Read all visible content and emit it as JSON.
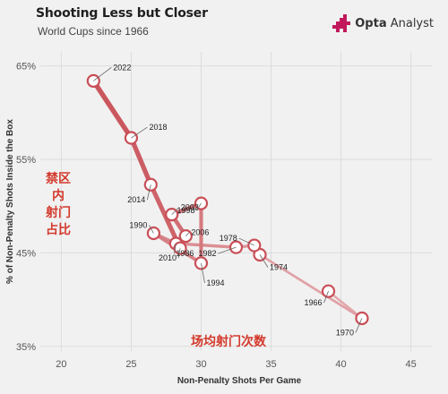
{
  "header": {
    "title": "Shooting Less but Closer",
    "subtitle": "World Cups since 1966",
    "brand_bold": "Opta",
    "brand_rest": " Analyst",
    "brand_icon": "opta-analyst-logo-icon"
  },
  "annotations": {
    "y_cn": "禁区\n内\n射门\n占比",
    "x_cn": "场均射门次数"
  },
  "colors": {
    "background": "#f1f1f1",
    "line_dark": "#c94f57",
    "line_light": "#e2a4a8",
    "marker_fill": "#ffffff",
    "marker_stroke": "#c94f57",
    "annotation": "#d33a2c"
  },
  "chart_data": {
    "type": "scatter",
    "title": "Shooting Less but Closer",
    "subtitle": "World Cups since 1966",
    "xlabel": "Non-Penalty Shots Per Game",
    "ylabel": "% of Non-Penalty Shots Inside the Box",
    "xlim": [
      18.5,
      46.5
    ],
    "ylim": [
      34.5,
      66.5
    ],
    "x_ticks": [
      20,
      25,
      30,
      35,
      40,
      45
    ],
    "x_tick_labels": [
      "20",
      "25",
      "30",
      "35",
      "40",
      "45"
    ],
    "y_ticks": [
      35,
      45,
      55,
      65
    ],
    "y_tick_labels": [
      "35%",
      "45%",
      "55%",
      "65%"
    ],
    "grid": true,
    "connected": true,
    "points": [
      {
        "label": "1966",
        "x": 39.1,
        "y": 40.9
      },
      {
        "label": "1970",
        "x": 41.5,
        "y": 38.0
      },
      {
        "label": "1974",
        "x": 34.2,
        "y": 44.8
      },
      {
        "label": "1978",
        "x": 33.8,
        "y": 45.8
      },
      {
        "label": "1982",
        "x": 32.5,
        "y": 45.6
      },
      {
        "label": "1986",
        "x": 28.2,
        "y": 46.0
      },
      {
        "label": "1990",
        "x": 26.6,
        "y": 47.1
      },
      {
        "label": "1994",
        "x": 30.0,
        "y": 43.9
      },
      {
        "label": "1998",
        "x": 30.0,
        "y": 50.3
      },
      {
        "label": "2002",
        "x": 27.9,
        "y": 49.1
      },
      {
        "label": "2006",
        "x": 28.9,
        "y": 46.8
      },
      {
        "label": "2010",
        "x": 28.5,
        "y": 45.5
      },
      {
        "label": "2014",
        "x": 26.4,
        "y": 52.3
      },
      {
        "label": "2018",
        "x": 25.0,
        "y": 57.3
      },
      {
        "label": "2022",
        "x": 22.3,
        "y": 63.4
      }
    ]
  }
}
